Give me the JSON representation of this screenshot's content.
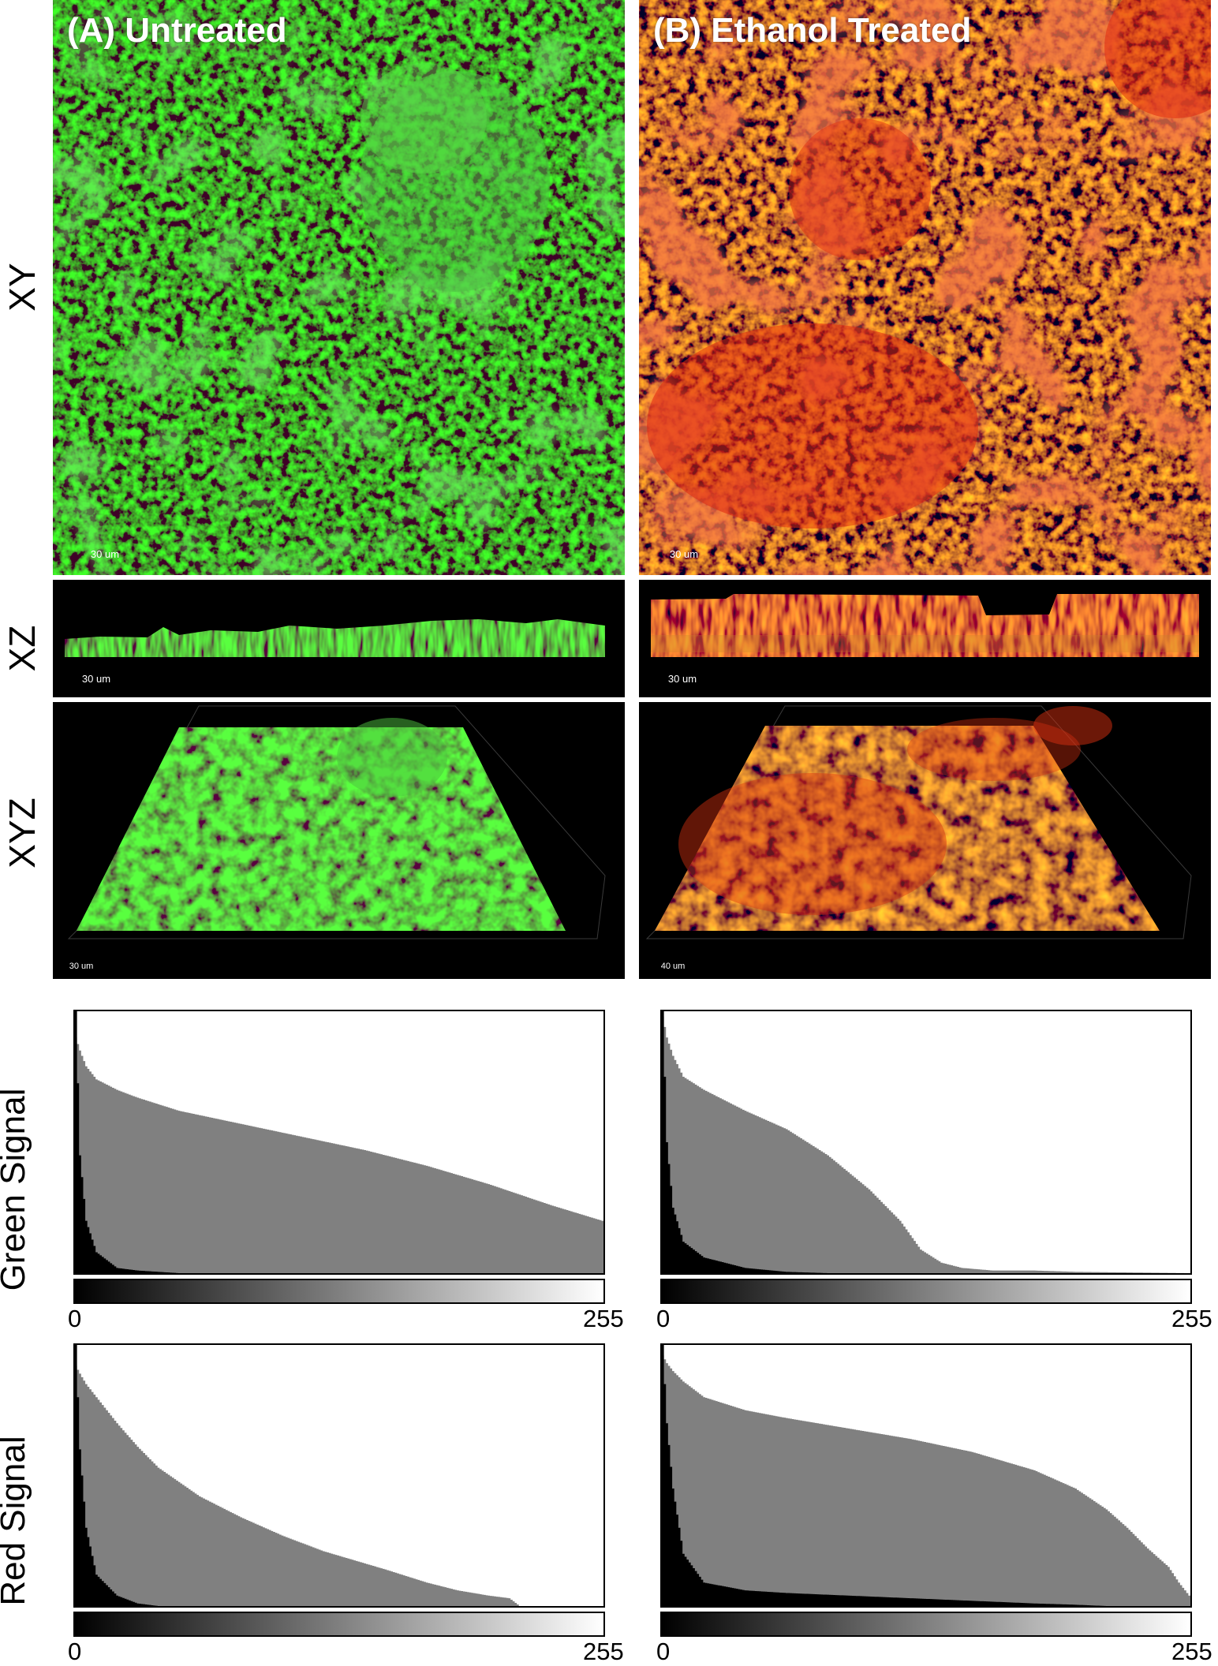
{
  "rows": {
    "xy": "XY",
    "xz": "XZ",
    "xyz": "XYZ",
    "green": "Green Signal",
    "red": "Red Signal"
  },
  "panels": {
    "a_title": "(A) Untreated",
    "b_title": "(B) Ethanol Treated"
  },
  "scalebars": {
    "a_xy": "30 um",
    "b_xy": "30 um",
    "a_xz": "30 um",
    "b_xz": "30 um",
    "a_xyz": "30 um",
    "b_xyz": "40 um"
  },
  "axis": {
    "min": "0",
    "max": "255"
  },
  "colors": {
    "green": "#2ed11a",
    "red": "#e0280e",
    "orange": "#b8641a",
    "hist_fill": "#808080"
  },
  "chart_data": [
    {
      "type": "area",
      "name": "Untreated Green Signal",
      "xlim": [
        0,
        255
      ],
      "x": [
        0,
        2,
        5,
        10,
        20,
        30,
        50,
        80,
        110,
        140,
        170,
        200,
        230,
        255
      ],
      "series": [
        {
          "values": [
            0.9,
            0.85,
            0.79,
            0.74,
            0.7,
            0.67,
            0.62,
            0.57,
            0.52,
            0.47,
            0.41,
            0.34,
            0.26,
            0.2
          ]
        },
        {
          "values": [
            1.0,
            0.45,
            0.2,
            0.08,
            0.02,
            0.01,
            0.0,
            0.0,
            0.0,
            0.0,
            0.0,
            0.0,
            0.0,
            0.0
          ]
        }
      ]
    },
    {
      "type": "area",
      "name": "Ethanol Treated Green Signal",
      "xlim": [
        0,
        255
      ],
      "x": [
        0,
        2,
        5,
        10,
        20,
        40,
        60,
        80,
        100,
        115,
        125,
        135,
        145,
        160,
        180,
        200,
        255
      ],
      "series": [
        {
          "values": [
            0.98,
            0.9,
            0.83,
            0.75,
            0.7,
            0.62,
            0.55,
            0.45,
            0.32,
            0.2,
            0.09,
            0.04,
            0.02,
            0.01,
            0.01,
            0.005,
            0.0
          ]
        },
        {
          "values": [
            1.0,
            0.5,
            0.25,
            0.12,
            0.06,
            0.02,
            0.005,
            0.0,
            0.0,
            0.0,
            0.0,
            0.0,
            0.0,
            0.0,
            0.0,
            0.0,
            0.0
          ]
        }
      ]
    },
    {
      "type": "area",
      "name": "Untreated Red Signal",
      "xlim": [
        0,
        255
      ],
      "x": [
        0,
        2,
        5,
        10,
        20,
        30,
        40,
        60,
        80,
        100,
        120,
        150,
        170,
        185,
        200,
        210,
        215,
        255
      ],
      "series": [
        {
          "values": [
            0.92,
            0.89,
            0.85,
            0.8,
            0.7,
            0.61,
            0.53,
            0.42,
            0.34,
            0.27,
            0.21,
            0.14,
            0.09,
            0.06,
            0.04,
            0.03,
            0.0,
            0.0
          ]
        },
        {
          "values": [
            1.0,
            0.6,
            0.3,
            0.12,
            0.04,
            0.01,
            0.0,
            0.0,
            0.0,
            0.0,
            0.0,
            0.0,
            0.0,
            0.0,
            0.0,
            0.0,
            0.0,
            0.0
          ]
        }
      ]
    },
    {
      "type": "area",
      "name": "Ethanol Treated Red Signal",
      "xlim": [
        0,
        255
      ],
      "x": [
        0,
        2,
        5,
        10,
        20,
        40,
        60,
        90,
        120,
        150,
        180,
        200,
        215,
        225,
        235,
        245,
        250,
        255
      ],
      "series": [
        {
          "values": [
            0.96,
            0.93,
            0.9,
            0.86,
            0.8,
            0.75,
            0.72,
            0.68,
            0.64,
            0.59,
            0.52,
            0.45,
            0.37,
            0.3,
            0.22,
            0.15,
            0.09,
            0.04
          ]
        },
        {
          "values": [
            1.0,
            0.7,
            0.45,
            0.2,
            0.09,
            0.06,
            0.05,
            0.04,
            0.03,
            0.02,
            0.01,
            0.005,
            0.0,
            0.0,
            0.0,
            0.0,
            0.0,
            0.0
          ]
        }
      ]
    }
  ]
}
